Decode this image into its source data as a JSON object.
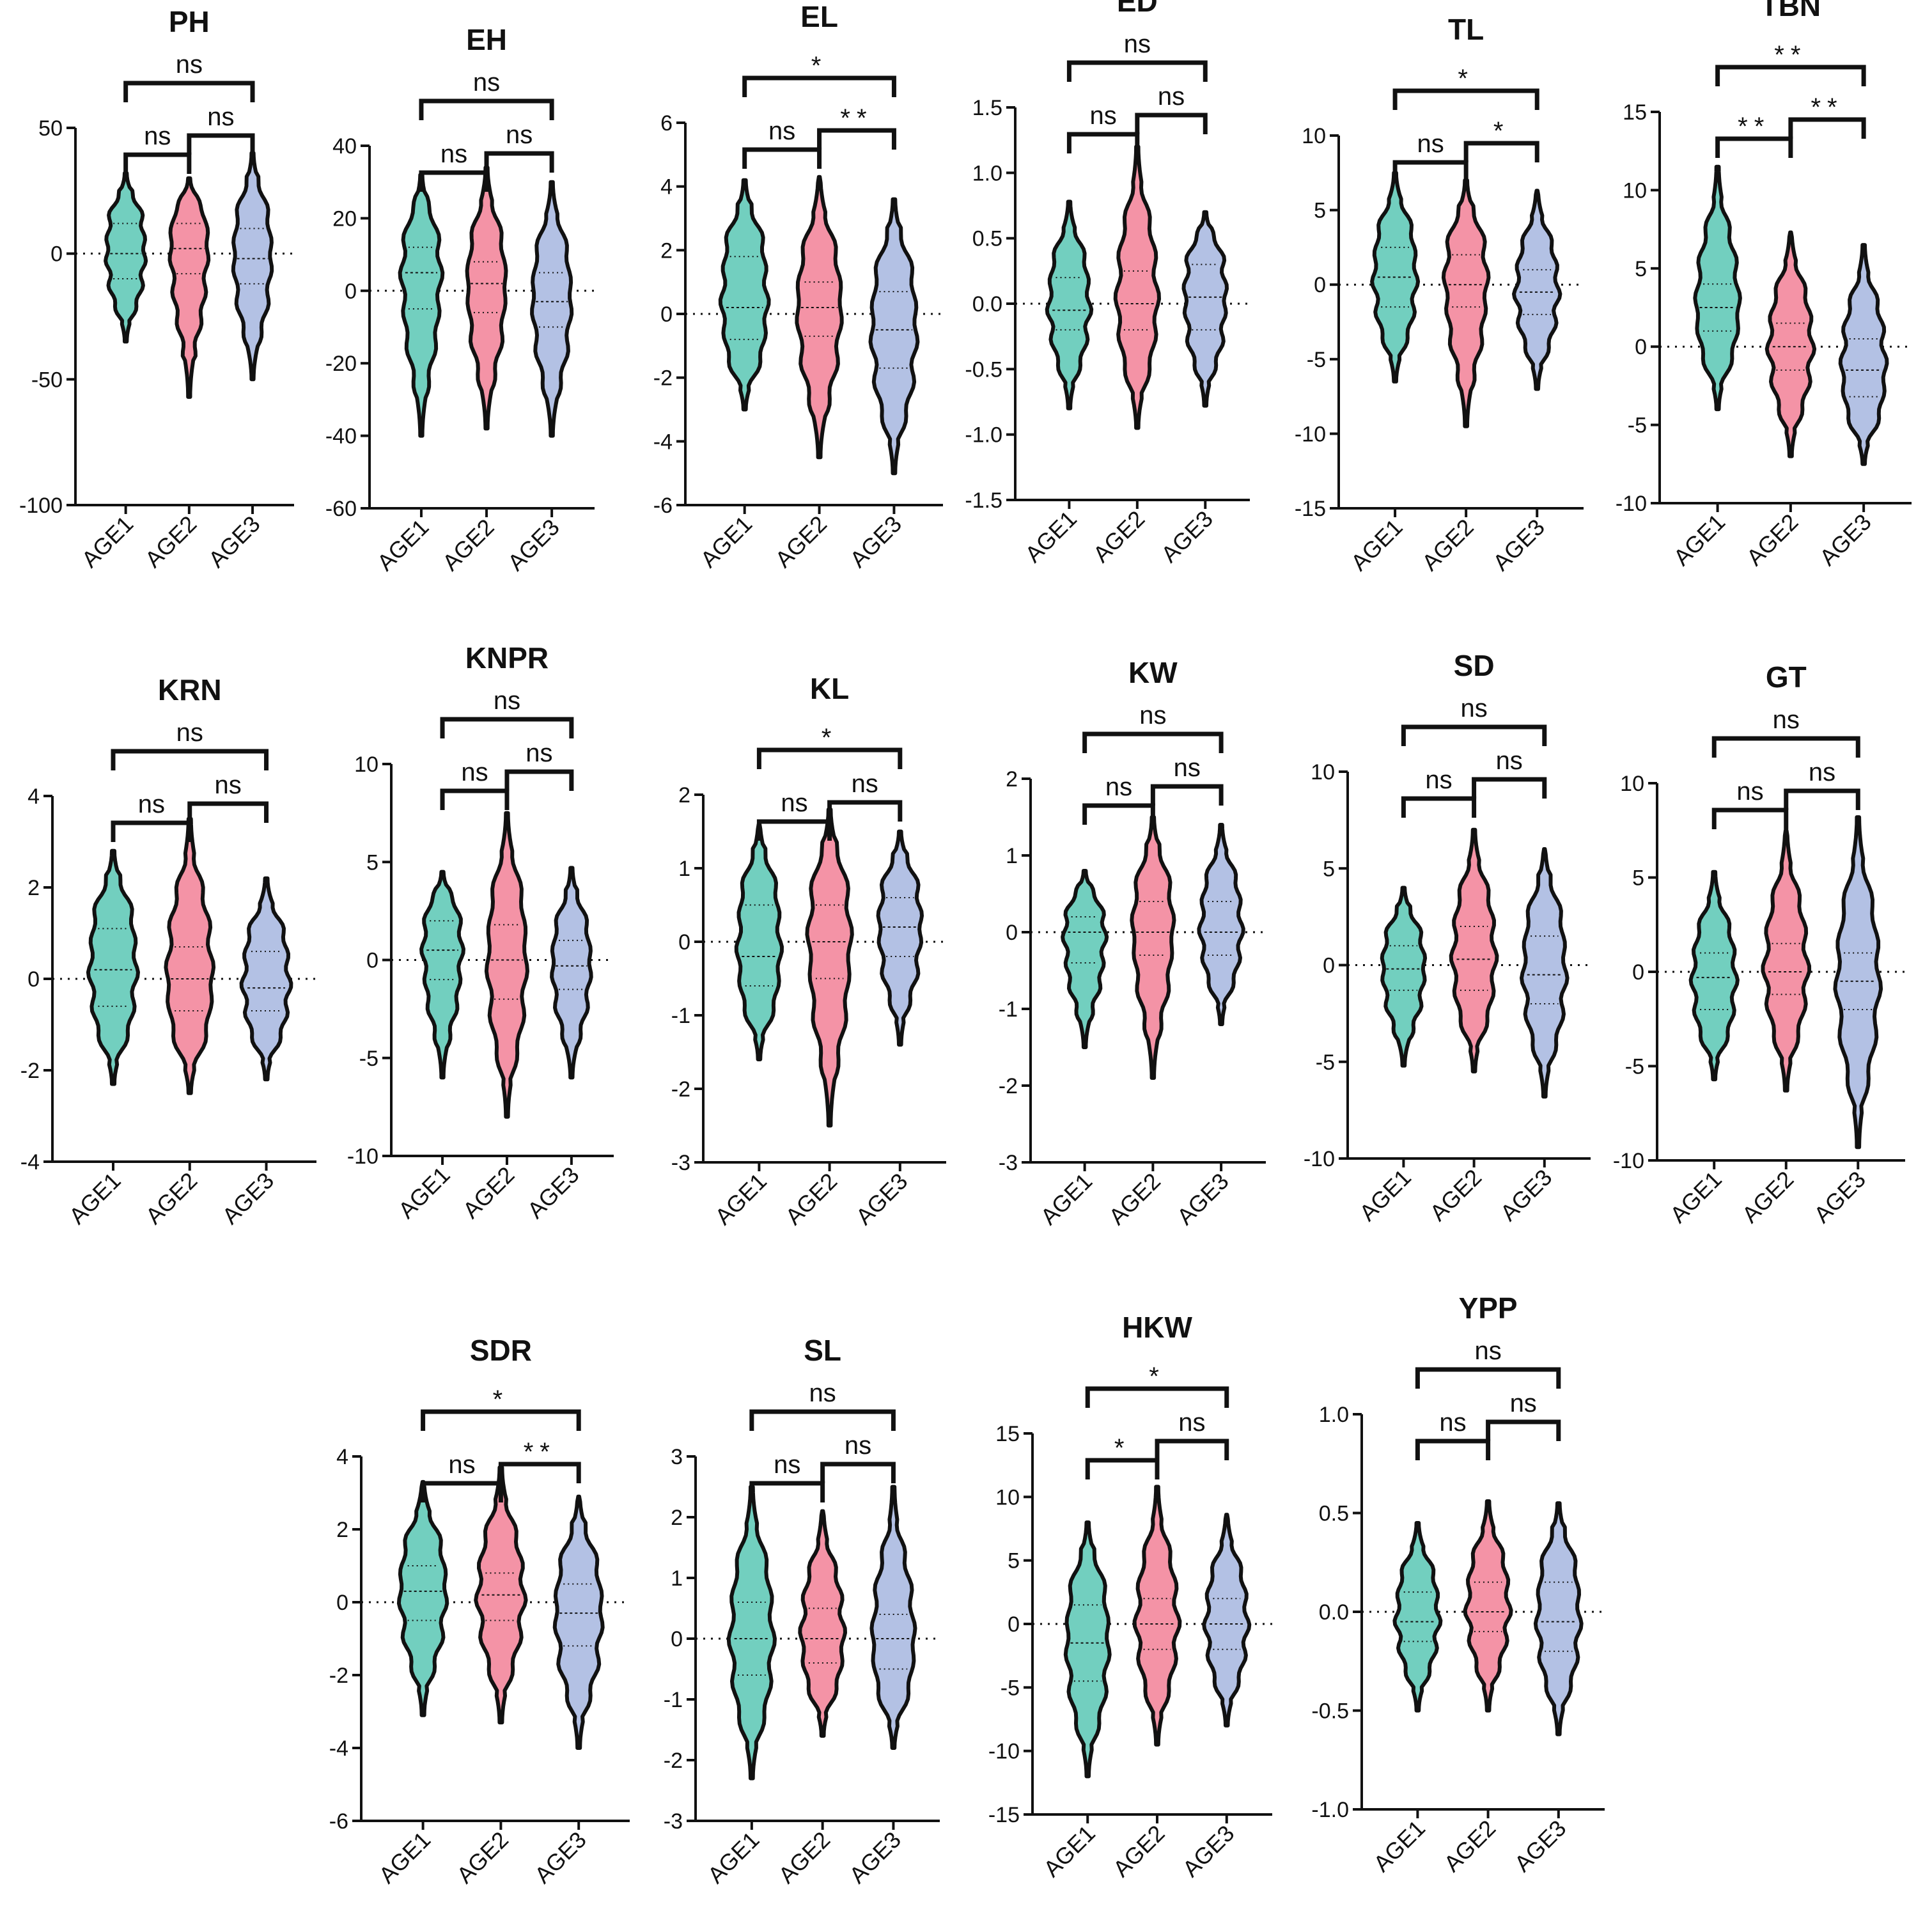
{
  "colors": {
    "AGE1": "#72cfbf",
    "AGE2": "#f493a6",
    "AGE3": "#b3c1e4",
    "outline": "#111111"
  },
  "chart_data": [
    {
      "type": "violin",
      "title": "PH",
      "categories": [
        "AGE1",
        "AGE2",
        "AGE3"
      ],
      "ylim": [
        -100,
        50
      ],
      "yticks": [
        50,
        0,
        -50,
        -100
      ],
      "series": [
        {
          "min": -35,
          "max": 32,
          "median": 0,
          "q1": -10,
          "q3": 12
        },
        {
          "min": -57,
          "max": 30,
          "median": 2,
          "q1": -8,
          "q3": 12
        },
        {
          "min": -50,
          "max": 40,
          "median": -2,
          "q1": -12,
          "q3": 10
        }
      ],
      "comparisons": [
        {
          "pair": [
            "AGE1",
            "AGE2"
          ],
          "label": "ns"
        },
        {
          "pair": [
            "AGE2",
            "AGE3"
          ],
          "label": "ns"
        },
        {
          "pair": [
            "AGE1",
            "AGE3"
          ],
          "label": "ns"
        }
      ]
    },
    {
      "type": "violin",
      "title": "EH",
      "categories": [
        "AGE1",
        "AGE2",
        "AGE3"
      ],
      "ylim": [
        -60,
        40
      ],
      "yticks": [
        40,
        20,
        0,
        -20,
        -40,
        -60
      ],
      "series": [
        {
          "min": -40,
          "max": 32,
          "median": 5,
          "q1": -5,
          "q3": 12
        },
        {
          "min": -38,
          "max": 34,
          "median": 2,
          "q1": -6,
          "q3": 8
        },
        {
          "min": -40,
          "max": 30,
          "median": -3,
          "q1": -10,
          "q3": 5
        }
      ],
      "comparisons": [
        {
          "pair": [
            "AGE1",
            "AGE2"
          ],
          "label": "ns"
        },
        {
          "pair": [
            "AGE2",
            "AGE3"
          ],
          "label": "ns"
        },
        {
          "pair": [
            "AGE1",
            "AGE3"
          ],
          "label": "ns"
        }
      ]
    },
    {
      "type": "violin",
      "title": "EL",
      "categories": [
        "AGE1",
        "AGE2",
        "AGE3"
      ],
      "ylim": [
        -6,
        6
      ],
      "yticks": [
        6,
        4,
        2,
        0,
        -2,
        -4,
        -6
      ],
      "series": [
        {
          "min": -3,
          "max": 4.2,
          "median": 0.2,
          "q1": -0.8,
          "q3": 1.8
        },
        {
          "min": -4.5,
          "max": 4.3,
          "median": 0.2,
          "q1": -0.7,
          "q3": 1.0
        },
        {
          "min": -5,
          "max": 3.6,
          "median": -0.5,
          "q1": -1.7,
          "q3": 0.7
        }
      ],
      "comparisons": [
        {
          "pair": [
            "AGE1",
            "AGE2"
          ],
          "label": "ns"
        },
        {
          "pair": [
            "AGE2",
            "AGE3"
          ],
          "label": "**"
        },
        {
          "pair": [
            "AGE1",
            "AGE3"
          ],
          "label": "*"
        }
      ]
    },
    {
      "type": "violin",
      "title": "ED",
      "categories": [
        "AGE1",
        "AGE2",
        "AGE3"
      ],
      "ylim": [
        -1.5,
        1.5
      ],
      "yticks": [
        1.5,
        1.0,
        0.5,
        0.0,
        -0.5,
        -1.0,
        -1.5
      ],
      "series": [
        {
          "min": -0.8,
          "max": 0.78,
          "median": -0.05,
          "q1": -0.2,
          "q3": 0.2
        },
        {
          "min": -0.95,
          "max": 1.2,
          "median": 0.0,
          "q1": -0.2,
          "q3": 0.25
        },
        {
          "min": -0.78,
          "max": 0.7,
          "median": 0.05,
          "q1": -0.2,
          "q3": 0.3
        }
      ],
      "comparisons": [
        {
          "pair": [
            "AGE1",
            "AGE2"
          ],
          "label": "ns"
        },
        {
          "pair": [
            "AGE2",
            "AGE3"
          ],
          "label": "ns"
        },
        {
          "pair": [
            "AGE1",
            "AGE3"
          ],
          "label": "ns"
        }
      ]
    },
    {
      "type": "violin",
      "title": "TL",
      "categories": [
        "AGE1",
        "AGE2",
        "AGE3"
      ],
      "ylim": [
        -15,
        10
      ],
      "yticks": [
        10,
        5,
        0,
        -5,
        -10,
        -15
      ],
      "series": [
        {
          "min": -6.5,
          "max": 7.5,
          "median": 0.5,
          "q1": -1.5,
          "q3": 2.5
        },
        {
          "min": -9.5,
          "max": 7,
          "median": 0,
          "q1": -1.5,
          "q3": 2
        },
        {
          "min": -7,
          "max": 6.3,
          "median": -0.5,
          "q1": -2,
          "q3": 1
        }
      ],
      "comparisons": [
        {
          "pair": [
            "AGE1",
            "AGE2"
          ],
          "label": "ns"
        },
        {
          "pair": [
            "AGE2",
            "AGE3"
          ],
          "label": "*"
        },
        {
          "pair": [
            "AGE1",
            "AGE3"
          ],
          "label": "*"
        }
      ]
    },
    {
      "type": "violin",
      "title": "TBN",
      "categories": [
        "AGE1",
        "AGE2",
        "AGE3"
      ],
      "ylim": [
        -10,
        15
      ],
      "yticks": [
        15,
        10,
        5,
        0,
        -5,
        -10
      ],
      "series": [
        {
          "min": -4,
          "max": 11.5,
          "median": 2.5,
          "q1": 1,
          "q3": 4
        },
        {
          "min": -7,
          "max": 7.3,
          "median": 0,
          "q1": -1.5,
          "q3": 1.5
        },
        {
          "min": -7.5,
          "max": 6.5,
          "median": -1.5,
          "q1": -3.2,
          "q3": 0.5
        }
      ],
      "comparisons": [
        {
          "pair": [
            "AGE1",
            "AGE2"
          ],
          "label": "**"
        },
        {
          "pair": [
            "AGE2",
            "AGE3"
          ],
          "label": "**"
        },
        {
          "pair": [
            "AGE1",
            "AGE3"
          ],
          "label": "**"
        }
      ]
    },
    {
      "type": "violin",
      "title": "KRN",
      "categories": [
        "AGE1",
        "AGE2",
        "AGE3"
      ],
      "ylim": [
        -4,
        4
      ],
      "yticks": [
        4,
        2,
        0,
        -2,
        -4
      ],
      "series": [
        {
          "min": -2.3,
          "max": 2.8,
          "median": 0.2,
          "q1": -0.6,
          "q3": 1.1
        },
        {
          "min": -2.5,
          "max": 3.5,
          "median": 0,
          "q1": -0.7,
          "q3": 0.7
        },
        {
          "min": -2.2,
          "max": 2.2,
          "median": -0.2,
          "q1": -0.7,
          "q3": 0.6
        }
      ],
      "comparisons": [
        {
          "pair": [
            "AGE1",
            "AGE2"
          ],
          "label": "ns"
        },
        {
          "pair": [
            "AGE2",
            "AGE3"
          ],
          "label": "ns"
        },
        {
          "pair": [
            "AGE1",
            "AGE3"
          ],
          "label": "ns"
        }
      ]
    },
    {
      "type": "violin",
      "title": "KNPR",
      "categories": [
        "AGE1",
        "AGE2",
        "AGE3"
      ],
      "ylim": [
        -10,
        10
      ],
      "yticks": [
        10,
        5,
        0,
        -5,
        -10
      ],
      "series": [
        {
          "min": -6,
          "max": 4.5,
          "median": 0.5,
          "q1": -1,
          "q3": 2
        },
        {
          "min": -8,
          "max": 7.5,
          "median": 0,
          "q1": -2,
          "q3": 1.8
        },
        {
          "min": -6,
          "max": 4.7,
          "median": -0.3,
          "q1": -1.5,
          "q3": 1
        }
      ],
      "comparisons": [
        {
          "pair": [
            "AGE1",
            "AGE2"
          ],
          "label": "ns"
        },
        {
          "pair": [
            "AGE2",
            "AGE3"
          ],
          "label": "ns"
        },
        {
          "pair": [
            "AGE1",
            "AGE3"
          ],
          "label": "ns"
        }
      ]
    },
    {
      "type": "violin",
      "title": "KL",
      "categories": [
        "AGE1",
        "AGE2",
        "AGE3"
      ],
      "ylim": [
        -3,
        2
      ],
      "yticks": [
        2,
        1,
        0,
        -1,
        -2,
        -3
      ],
      "series": [
        {
          "min": -1.6,
          "max": 1.6,
          "median": -0.2,
          "q1": -0.6,
          "q3": 0.5
        },
        {
          "min": -2.5,
          "max": 1.8,
          "median": 0,
          "q1": -0.5,
          "q3": 0.5
        },
        {
          "min": -1.4,
          "max": 1.5,
          "median": 0.2,
          "q1": -0.2,
          "q3": 0.6
        }
      ],
      "comparisons": [
        {
          "pair": [
            "AGE1",
            "AGE2"
          ],
          "label": "ns"
        },
        {
          "pair": [
            "AGE2",
            "AGE3"
          ],
          "label": "ns"
        },
        {
          "pair": [
            "AGE1",
            "AGE3"
          ],
          "label": "*"
        }
      ]
    },
    {
      "type": "violin",
      "title": "KW",
      "categories": [
        "AGE1",
        "AGE2",
        "AGE3"
      ],
      "ylim": [
        -3,
        2
      ],
      "yticks": [
        2,
        1,
        0,
        -1,
        -2,
        -3
      ],
      "series": [
        {
          "min": -1.5,
          "max": 0.8,
          "median": 0,
          "q1": -0.4,
          "q3": 0.2
        },
        {
          "min": -1.9,
          "max": 1.5,
          "median": 0,
          "q1": -0.3,
          "q3": 0.4
        },
        {
          "min": -1.2,
          "max": 1.4,
          "median": 0,
          "q1": -0.3,
          "q3": 0.4
        }
      ],
      "comparisons": [
        {
          "pair": [
            "AGE1",
            "AGE2"
          ],
          "label": "ns"
        },
        {
          "pair": [
            "AGE2",
            "AGE3"
          ],
          "label": "ns"
        },
        {
          "pair": [
            "AGE1",
            "AGE3"
          ],
          "label": "ns"
        }
      ]
    },
    {
      "type": "violin",
      "title": "SD",
      "categories": [
        "AGE1",
        "AGE2",
        "AGE3"
      ],
      "ylim": [
        -10,
        10
      ],
      "yticks": [
        10,
        5,
        0,
        -5,
        -10
      ],
      "series": [
        {
          "min": -5.2,
          "max": 4,
          "median": -0.2,
          "q1": -1.3,
          "q3": 1
        },
        {
          "min": -5.5,
          "max": 7,
          "median": 0.3,
          "q1": -1.3,
          "q3": 2
        },
        {
          "min": -6.8,
          "max": 6,
          "median": -0.5,
          "q1": -2,
          "q3": 1.5
        }
      ],
      "comparisons": [
        {
          "pair": [
            "AGE1",
            "AGE2"
          ],
          "label": "ns"
        },
        {
          "pair": [
            "AGE2",
            "AGE3"
          ],
          "label": "ns"
        },
        {
          "pair": [
            "AGE1",
            "AGE3"
          ],
          "label": "ns"
        }
      ]
    },
    {
      "type": "violin",
      "title": "GT",
      "categories": [
        "AGE1",
        "AGE2",
        "AGE3"
      ],
      "ylim": [
        -10,
        10
      ],
      "yticks": [
        10,
        5,
        0,
        -5,
        -10
      ],
      "series": [
        {
          "min": -5.7,
          "max": 5.3,
          "median": -0.3,
          "q1": -2,
          "q3": 1
        },
        {
          "min": -6.3,
          "max": 7.5,
          "median": 0,
          "q1": -1.2,
          "q3": 1.5
        },
        {
          "min": -9.3,
          "max": 8.2,
          "median": -0.5,
          "q1": -2,
          "q3": 1
        }
      ],
      "comparisons": [
        {
          "pair": [
            "AGE1",
            "AGE2"
          ],
          "label": "ns"
        },
        {
          "pair": [
            "AGE2",
            "AGE3"
          ],
          "label": "ns"
        },
        {
          "pair": [
            "AGE1",
            "AGE3"
          ],
          "label": "ns"
        }
      ]
    },
    {
      "type": "violin",
      "title": "SDR",
      "categories": [
        "AGE1",
        "AGE2",
        "AGE3"
      ],
      "ylim": [
        -6,
        4
      ],
      "yticks": [
        4,
        2,
        0,
        -2,
        -4,
        -6
      ],
      "series": [
        {
          "min": -3.1,
          "max": 3.3,
          "median": 0.3,
          "q1": -0.5,
          "q3": 1
        },
        {
          "min": -3.3,
          "max": 3.7,
          "median": 0.2,
          "q1": -0.5,
          "q3": 0.8
        },
        {
          "min": -4,
          "max": 2.9,
          "median": -0.3,
          "q1": -1.2,
          "q3": 0.5
        }
      ],
      "comparisons": [
        {
          "pair": [
            "AGE1",
            "AGE2"
          ],
          "label": "ns"
        },
        {
          "pair": [
            "AGE2",
            "AGE3"
          ],
          "label": "**"
        },
        {
          "pair": [
            "AGE1",
            "AGE3"
          ],
          "label": "*"
        }
      ]
    },
    {
      "type": "violin",
      "title": "SL",
      "categories": [
        "AGE1",
        "AGE2",
        "AGE3"
      ],
      "ylim": [
        -3,
        3
      ],
      "yticks": [
        3,
        2,
        1,
        0,
        -1,
        -2,
        -3
      ],
      "series": [
        {
          "min": -2.3,
          "max": 2.5,
          "median": 0,
          "q1": -0.6,
          "q3": 0.6
        },
        {
          "min": -1.6,
          "max": 2.1,
          "median": 0,
          "q1": -0.4,
          "q3": 0.5
        },
        {
          "min": -1.8,
          "max": 2.5,
          "median": 0,
          "q1": -0.5,
          "q3": 0.4
        }
      ],
      "comparisons": [
        {
          "pair": [
            "AGE1",
            "AGE2"
          ],
          "label": "ns"
        },
        {
          "pair": [
            "AGE2",
            "AGE3"
          ],
          "label": "ns"
        },
        {
          "pair": [
            "AGE1",
            "AGE3"
          ],
          "label": "ns"
        }
      ]
    },
    {
      "type": "violin",
      "title": "HKW",
      "categories": [
        "AGE1",
        "AGE2",
        "AGE3"
      ],
      "ylim": [
        -15,
        15
      ],
      "yticks": [
        15,
        10,
        5,
        0,
        -5,
        -10,
        -15
      ],
      "series": [
        {
          "min": -12,
          "max": 8,
          "median": -1.5,
          "q1": -4.5,
          "q3": 1.5
        },
        {
          "min": -9.5,
          "max": 10.8,
          "median": 0,
          "q1": -2,
          "q3": 2
        },
        {
          "min": -8,
          "max": 8.6,
          "median": 0,
          "q1": -2,
          "q3": 2
        }
      ],
      "comparisons": [
        {
          "pair": [
            "AGE1",
            "AGE2"
          ],
          "label": "*"
        },
        {
          "pair": [
            "AGE2",
            "AGE3"
          ],
          "label": "ns"
        },
        {
          "pair": [
            "AGE1",
            "AGE3"
          ],
          "label": "*"
        }
      ]
    },
    {
      "type": "violin",
      "title": "YPP",
      "categories": [
        "AGE1",
        "AGE2",
        "AGE3"
      ],
      "ylim": [
        -1.0,
        1.0
      ],
      "yticks": [
        1.0,
        0.5,
        0.0,
        -0.5,
        -1.0
      ],
      "series": [
        {
          "min": -0.5,
          "max": 0.45,
          "median": -0.05,
          "q1": -0.15,
          "q3": 0.1
        },
        {
          "min": -0.5,
          "max": 0.56,
          "median": 0,
          "q1": -0.1,
          "q3": 0.15
        },
        {
          "min": -0.62,
          "max": 0.55,
          "median": -0.05,
          "q1": -0.2,
          "q3": 0.15
        }
      ],
      "comparisons": [
        {
          "pair": [
            "AGE1",
            "AGE2"
          ],
          "label": "ns"
        },
        {
          "pair": [
            "AGE2",
            "AGE3"
          ],
          "label": "ns"
        },
        {
          "pair": [
            "AGE1",
            "AGE3"
          ],
          "label": "ns"
        }
      ]
    }
  ]
}
